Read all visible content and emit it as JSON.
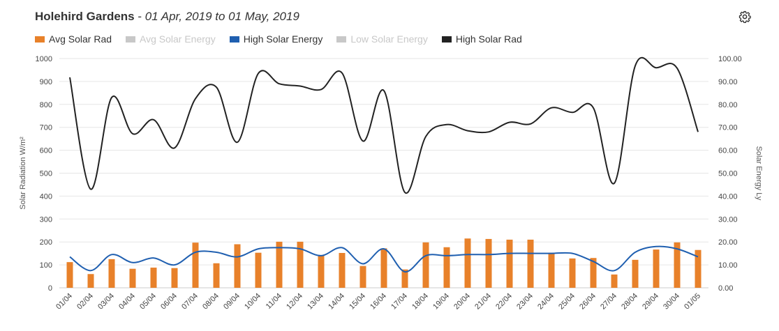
{
  "header": {
    "location": "Holehird Gardens",
    "separator": " - ",
    "date_range": "01 Apr, 2019 to 01 May, 2019"
  },
  "icons": {
    "settings": "gear-icon"
  },
  "legend": [
    {
      "label": "Avg Solar Rad",
      "color": "#e8812a",
      "active": true
    },
    {
      "label": "Avg Solar Energy",
      "color": "#c8c8c8",
      "active": false
    },
    {
      "label": "High Solar Energy",
      "color": "#1f5fb0",
      "active": true
    },
    {
      "label": "Low Solar Energy",
      "color": "#c8c8c8",
      "active": false
    },
    {
      "label": "High Solar Rad",
      "color": "#222222",
      "active": true
    }
  ],
  "chart_data": {
    "type": "bar",
    "categories": [
      "01/04",
      "02/04",
      "03/04",
      "04/04",
      "05/04",
      "06/04",
      "07/04",
      "08/04",
      "09/04",
      "10/04",
      "11/04",
      "12/04",
      "13/04",
      "14/04",
      "15/04",
      "16/04",
      "17/04",
      "18/04",
      "19/04",
      "20/04",
      "21/04",
      "22/04",
      "23/04",
      "24/04",
      "25/04",
      "26/04",
      "27/04",
      "28/04",
      "29/04",
      "30/04",
      "01/05"
    ],
    "ylabel": "Solar Radiation W/m²",
    "y2label": "Solar Energy Ly",
    "ylim": [
      0,
      1000
    ],
    "y2lim": [
      0,
      100
    ],
    "yticks": [
      "0",
      "100",
      "200",
      "300",
      "400",
      "500",
      "600",
      "700",
      "800",
      "900",
      "1000"
    ],
    "y2ticks": [
      "0.00",
      "10.00",
      "20.00",
      "30.00",
      "40.00",
      "50.00",
      "60.00",
      "70.00",
      "80.00",
      "90.00",
      "100.00"
    ],
    "grid": true,
    "legend_position": "top-left",
    "series": [
      {
        "name": "Avg Solar Rad",
        "type": "bar",
        "axis": "left",
        "color": "#e8812a",
        "values": [
          112,
          60,
          125,
          83,
          88,
          86,
          197,
          107,
          190,
          153,
          201,
          201,
          142,
          152,
          95,
          172,
          80,
          198,
          177,
          215,
          213,
          210,
          210,
          153,
          128,
          130,
          58,
          122,
          167,
          198,
          165
        ]
      },
      {
        "name": "High Solar Energy",
        "type": "line",
        "axis": "right",
        "color": "#1f5fb0",
        "values": [
          13.5,
          7.5,
          14.5,
          11.0,
          13.0,
          10.0,
          15.5,
          15.5,
          13.5,
          17.0,
          17.5,
          17.0,
          14.0,
          17.5,
          10.5,
          17.0,
          7.0,
          14.0,
          14.0,
          14.5,
          14.5,
          15.0,
          15.0,
          15.0,
          15.0,
          11.5,
          7.5,
          15.5,
          18.0,
          17.0,
          13.5
        ]
      },
      {
        "name": "High Solar Rad",
        "type": "line",
        "axis": "left",
        "color": "#222222",
        "values": [
          918,
          430,
          830,
          672,
          733,
          610,
          825,
          875,
          635,
          935,
          890,
          880,
          865,
          937,
          640,
          860,
          416,
          660,
          712,
          685,
          680,
          722,
          715,
          785,
          765,
          785,
          456,
          968,
          960,
          958,
          680
        ]
      }
    ]
  }
}
